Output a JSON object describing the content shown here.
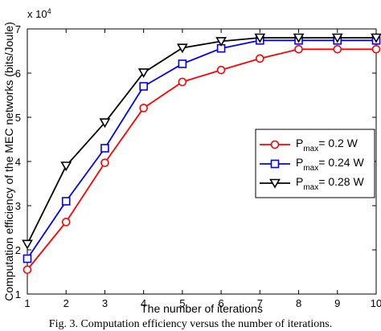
{
  "chart_data": {
    "type": "line",
    "title": "",
    "xlabel": "The number of iterations",
    "ylabel": "Computation efficiency of the MEC networks (bits/Joule)",
    "scale_note": "x 10",
    "scale_exp": "4",
    "x": [
      1,
      2,
      3,
      4,
      5,
      6,
      7,
      8,
      9,
      10
    ],
    "xlim": [
      1,
      10
    ],
    "ylim": [
      1,
      7
    ],
    "xticks": [
      "1",
      "2",
      "3",
      "4",
      "5",
      "6",
      "7",
      "8",
      "9",
      "10"
    ],
    "yticks": [
      "1",
      "2",
      "3",
      "4",
      "5",
      "6",
      "7"
    ],
    "grid": false,
    "legend_position": "center-right",
    "series": [
      {
        "name_main": "P",
        "name_sub": "max",
        "name_rest": "= 0.2  W",
        "color": "#ff0000",
        "marker": "circle",
        "values": [
          1.55,
          2.63,
          3.97,
          5.21,
          5.8,
          6.07,
          6.33,
          6.54,
          6.54,
          6.54
        ]
      },
      {
        "name_main": "P",
        "name_sub": "max",
        "name_rest": "= 0.24  W",
        "color": "#0000ff",
        "marker": "square",
        "values": [
          1.8,
          3.1,
          4.3,
          5.7,
          6.21,
          6.56,
          6.74,
          6.74,
          6.74,
          6.74
        ]
      },
      {
        "name_main": "P",
        "name_sub": "max",
        "name_rest": "= 0.28  W",
        "color": "#000000",
        "marker": "triangle-down",
        "values": [
          2.13,
          3.9,
          4.88,
          6.01,
          6.57,
          6.72,
          6.8,
          6.8,
          6.8,
          6.8
        ]
      }
    ]
  },
  "caption": "Fig. 3. Computation efficiency versus the number of iterations."
}
